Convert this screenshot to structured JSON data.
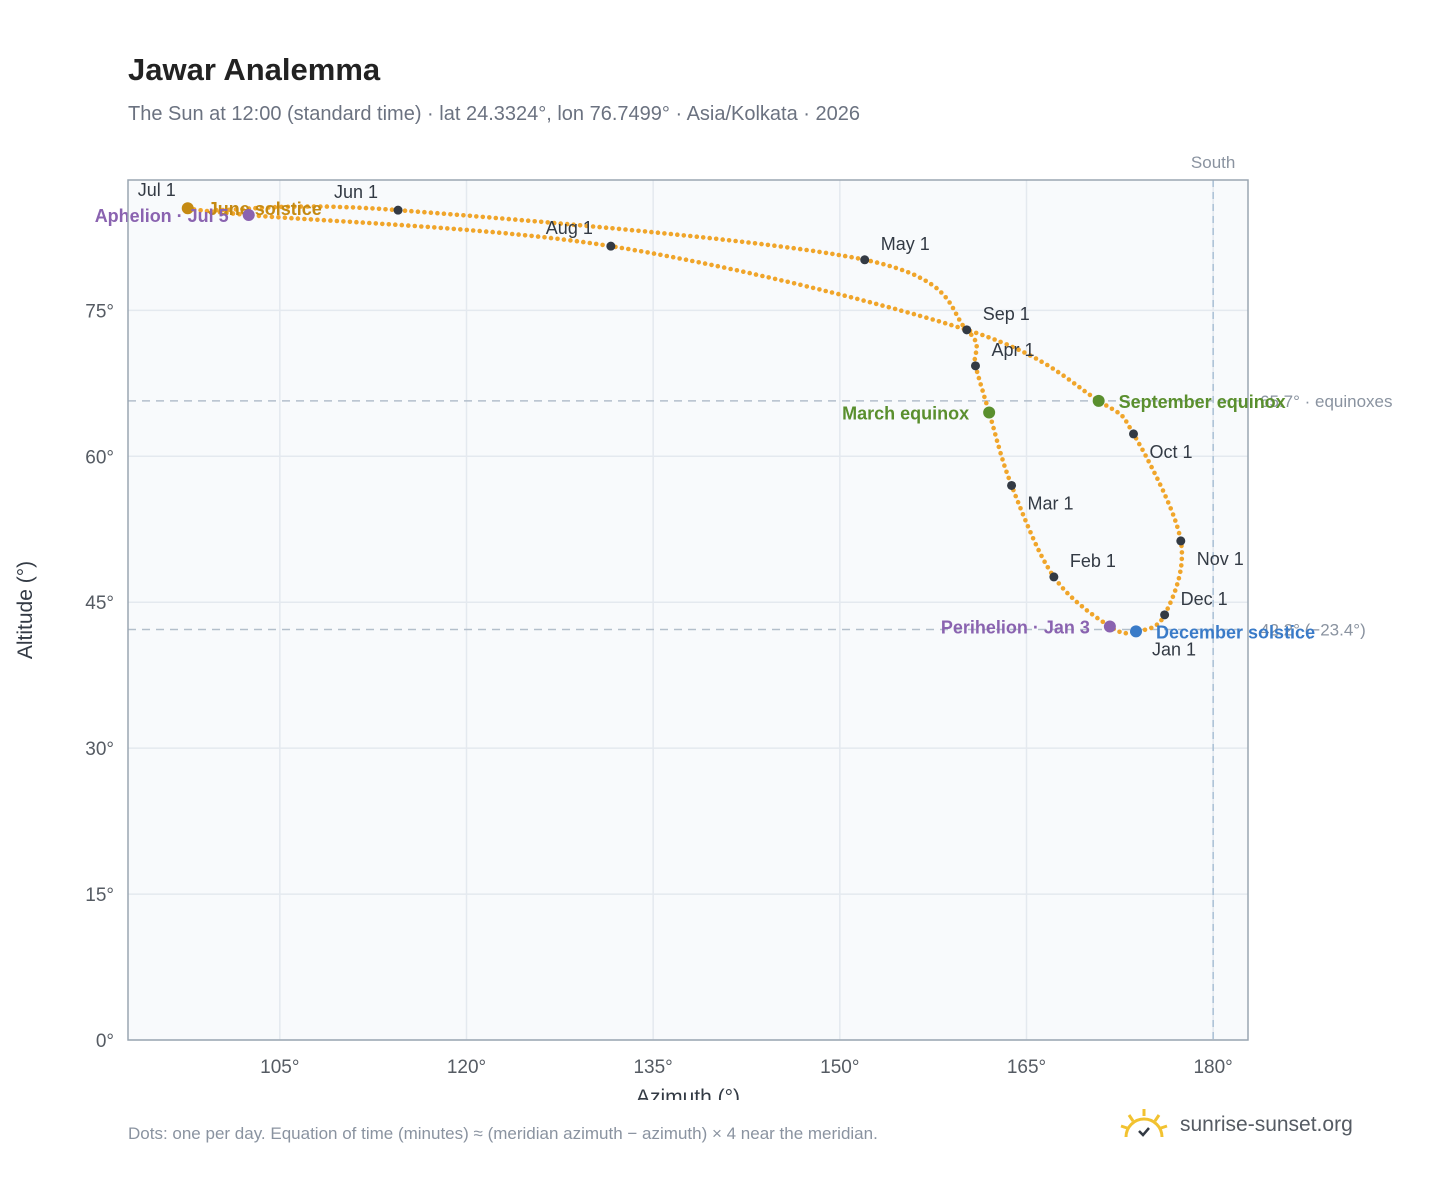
{
  "header": {
    "title": "Jawar Analemma",
    "subtitle": "The Sun at 12:00 (standard time) · lat 24.3324°, lon 76.7499° · Asia/Kolkata · 2026"
  },
  "footer": {
    "note": "Dots: one per day. Equation of time (minutes) ≈ (meridian azimuth − azimuth) × 4 near the meridian.",
    "brand": "sunrise-sunset.org"
  },
  "colors": {
    "curve": "#f0a52a",
    "month_dot": "#333a44",
    "equinox": "#5a8f2e",
    "june_solstice": "#c58a12",
    "december_solstice": "#3a7bc8",
    "apsis": "#8a63b0",
    "grid": "#e4e9ef",
    "plot_bg": "#f8fafc",
    "reference_line": "#b3bfcb"
  },
  "chart_data": {
    "type": "scatter",
    "xlabel": "Azimuth (°)",
    "ylabel": "Altitude (°)",
    "xlim": [
      92.8,
      182.8
    ],
    "ylim": [
      0,
      88.4
    ],
    "x_ticks": [
      105,
      120,
      135,
      150,
      165,
      180
    ],
    "y_ticks": [
      0,
      15,
      30,
      45,
      60,
      75
    ],
    "grid": true,
    "south_line": {
      "x": 180,
      "label": "South"
    },
    "reference_lines": [
      {
        "y": 65.7,
        "label": "65.7° · equinoxes"
      },
      {
        "y": 42.2,
        "label": "42.2° (−23.4°)"
      }
    ],
    "series": [
      {
        "points": [
          [
            99.9,
            85.3
          ],
          [
            114.5,
            85.3
          ],
          [
            152.0,
            80.2
          ],
          [
            160.2,
            73.0
          ],
          [
            160.9,
            69.3
          ],
          [
            162.0,
            64.5
          ],
          [
            163.8,
            57.0
          ],
          [
            167.2,
            47.6
          ],
          [
            171.7,
            42.5
          ],
          [
            173.8,
            42.0
          ],
          [
            176.1,
            43.7
          ],
          [
            177.4,
            51.3
          ],
          [
            173.6,
            62.3
          ],
          [
            170.8,
            65.7
          ],
          [
            160.2,
            73.0
          ],
          [
            131.6,
            81.6
          ],
          [
            102.5,
            84.8
          ],
          [
            97.6,
            85.5
          ]
        ]
      }
    ],
    "month_markers": [
      {
        "label": "Jan 1",
        "x": 173.8,
        "y": 42.0
      },
      {
        "label": "Feb 1",
        "x": 167.2,
        "y": 47.6
      },
      {
        "label": "Mar 1",
        "x": 163.8,
        "y": 57.0
      },
      {
        "label": "Apr 1",
        "x": 160.9,
        "y": 69.3
      },
      {
        "label": "May 1",
        "x": 152.0,
        "y": 80.2
      },
      {
        "label": "Jun 1",
        "x": 114.5,
        "y": 85.3
      },
      {
        "label": "Jul 1",
        "x": 97.6,
        "y": 85.5
      },
      {
        "label": "Aug 1",
        "x": 131.6,
        "y": 81.6
      },
      {
        "label": "Sep 1",
        "x": 160.2,
        "y": 73.0
      },
      {
        "label": "Oct 1",
        "x": 173.6,
        "y": 62.3
      },
      {
        "label": "Nov 1",
        "x": 177.4,
        "y": 51.3
      },
      {
        "label": "Dec 1",
        "x": 176.1,
        "y": 43.7
      }
    ],
    "events": [
      {
        "label": "March equinox",
        "x": 162.0,
        "y": 64.5,
        "color": "equinox"
      },
      {
        "label": "September equinox",
        "x": 170.8,
        "y": 65.7,
        "color": "equinox"
      },
      {
        "label": "June solstice",
        "x": 97.6,
        "y": 85.5,
        "color": "june_solstice"
      },
      {
        "label": "December solstice",
        "x": 173.8,
        "y": 42.0,
        "color": "december_solstice"
      },
      {
        "label": "Perihelion · Jan 3",
        "x": 171.7,
        "y": 42.5,
        "color": "apsis"
      },
      {
        "label": "Aphelion · Jul 5",
        "x": 102.5,
        "y": 84.8,
        "color": "apsis"
      }
    ]
  }
}
